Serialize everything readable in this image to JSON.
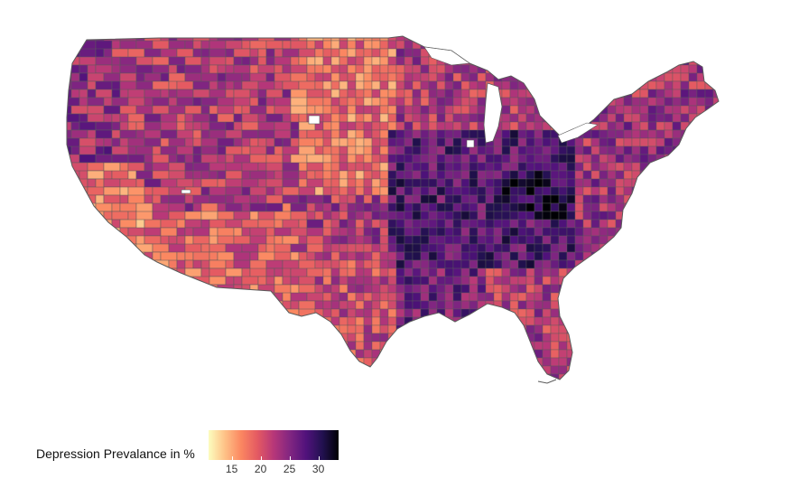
{
  "legend": {
    "title": "Depression Prevalance in %",
    "min": 11,
    "max": 33.5,
    "ticks": [
      15,
      20,
      25,
      30
    ],
    "colormap": "magma-reversed",
    "stops": [
      "#fcfdbf",
      "#fec287",
      "#fb8761",
      "#e45a62",
      "#b73779",
      "#822681",
      "#51127c",
      "#221150",
      "#000004"
    ]
  },
  "map_colors": {
    "border": "#5a5a5a",
    "missing": "#ffffff"
  }
}
